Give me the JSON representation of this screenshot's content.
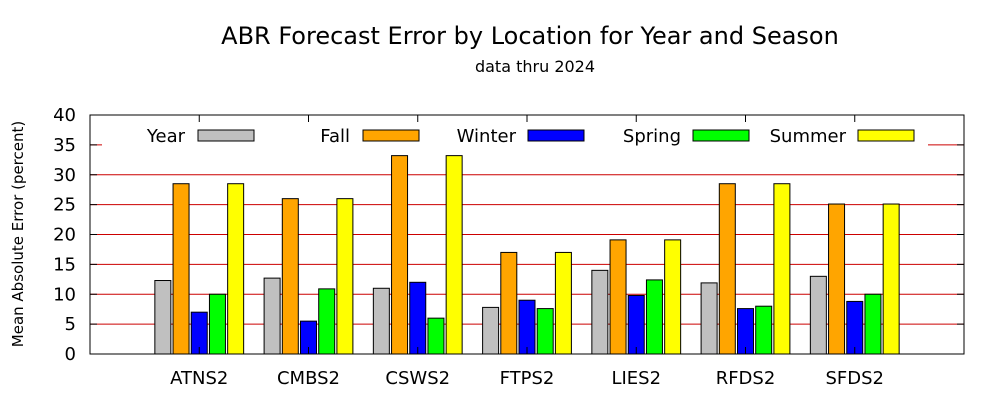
{
  "chart_data": {
    "type": "bar",
    "title": "ABR Forecast Error by Location for Year and Season",
    "subtitle": "data thru 2024",
    "xlabel": "",
    "ylabel": "Mean Absolute Error (percent)",
    "ylim": [
      0,
      40
    ],
    "yticks": [
      "0",
      "5",
      "10",
      "15",
      "20",
      "25",
      "30",
      "35",
      "40"
    ],
    "grid": "horizontal, red",
    "legend_position": "top, inside",
    "categories": [
      "ATNS2",
      "CMBS2",
      "CSWS2",
      "FTPS2",
      "LIES2",
      "RFDS2",
      "SFDS2"
    ],
    "series": [
      {
        "name": "Year",
        "color": "#c0c0c0",
        "values": [
          12.3,
          12.7,
          11.0,
          7.8,
          14.0,
          11.9,
          13.0
        ]
      },
      {
        "name": "Fall",
        "color": "#ffa500",
        "values": [
          28.5,
          26.0,
          33.2,
          17.0,
          19.1,
          28.5,
          25.1
        ]
      },
      {
        "name": "Winter",
        "color": "#0000ff",
        "values": [
          7.0,
          5.5,
          12.0,
          9.0,
          9.8,
          7.6,
          8.8
        ]
      },
      {
        "name": "Spring",
        "color": "#00ff00",
        "values": [
          10.0,
          10.9,
          6.0,
          7.6,
          12.4,
          8.0,
          10.0
        ]
      },
      {
        "name": "Summer",
        "color": "#ffff00",
        "values": [
          28.5,
          26.0,
          33.2,
          17.0,
          19.1,
          28.5,
          25.1
        ]
      }
    ]
  }
}
